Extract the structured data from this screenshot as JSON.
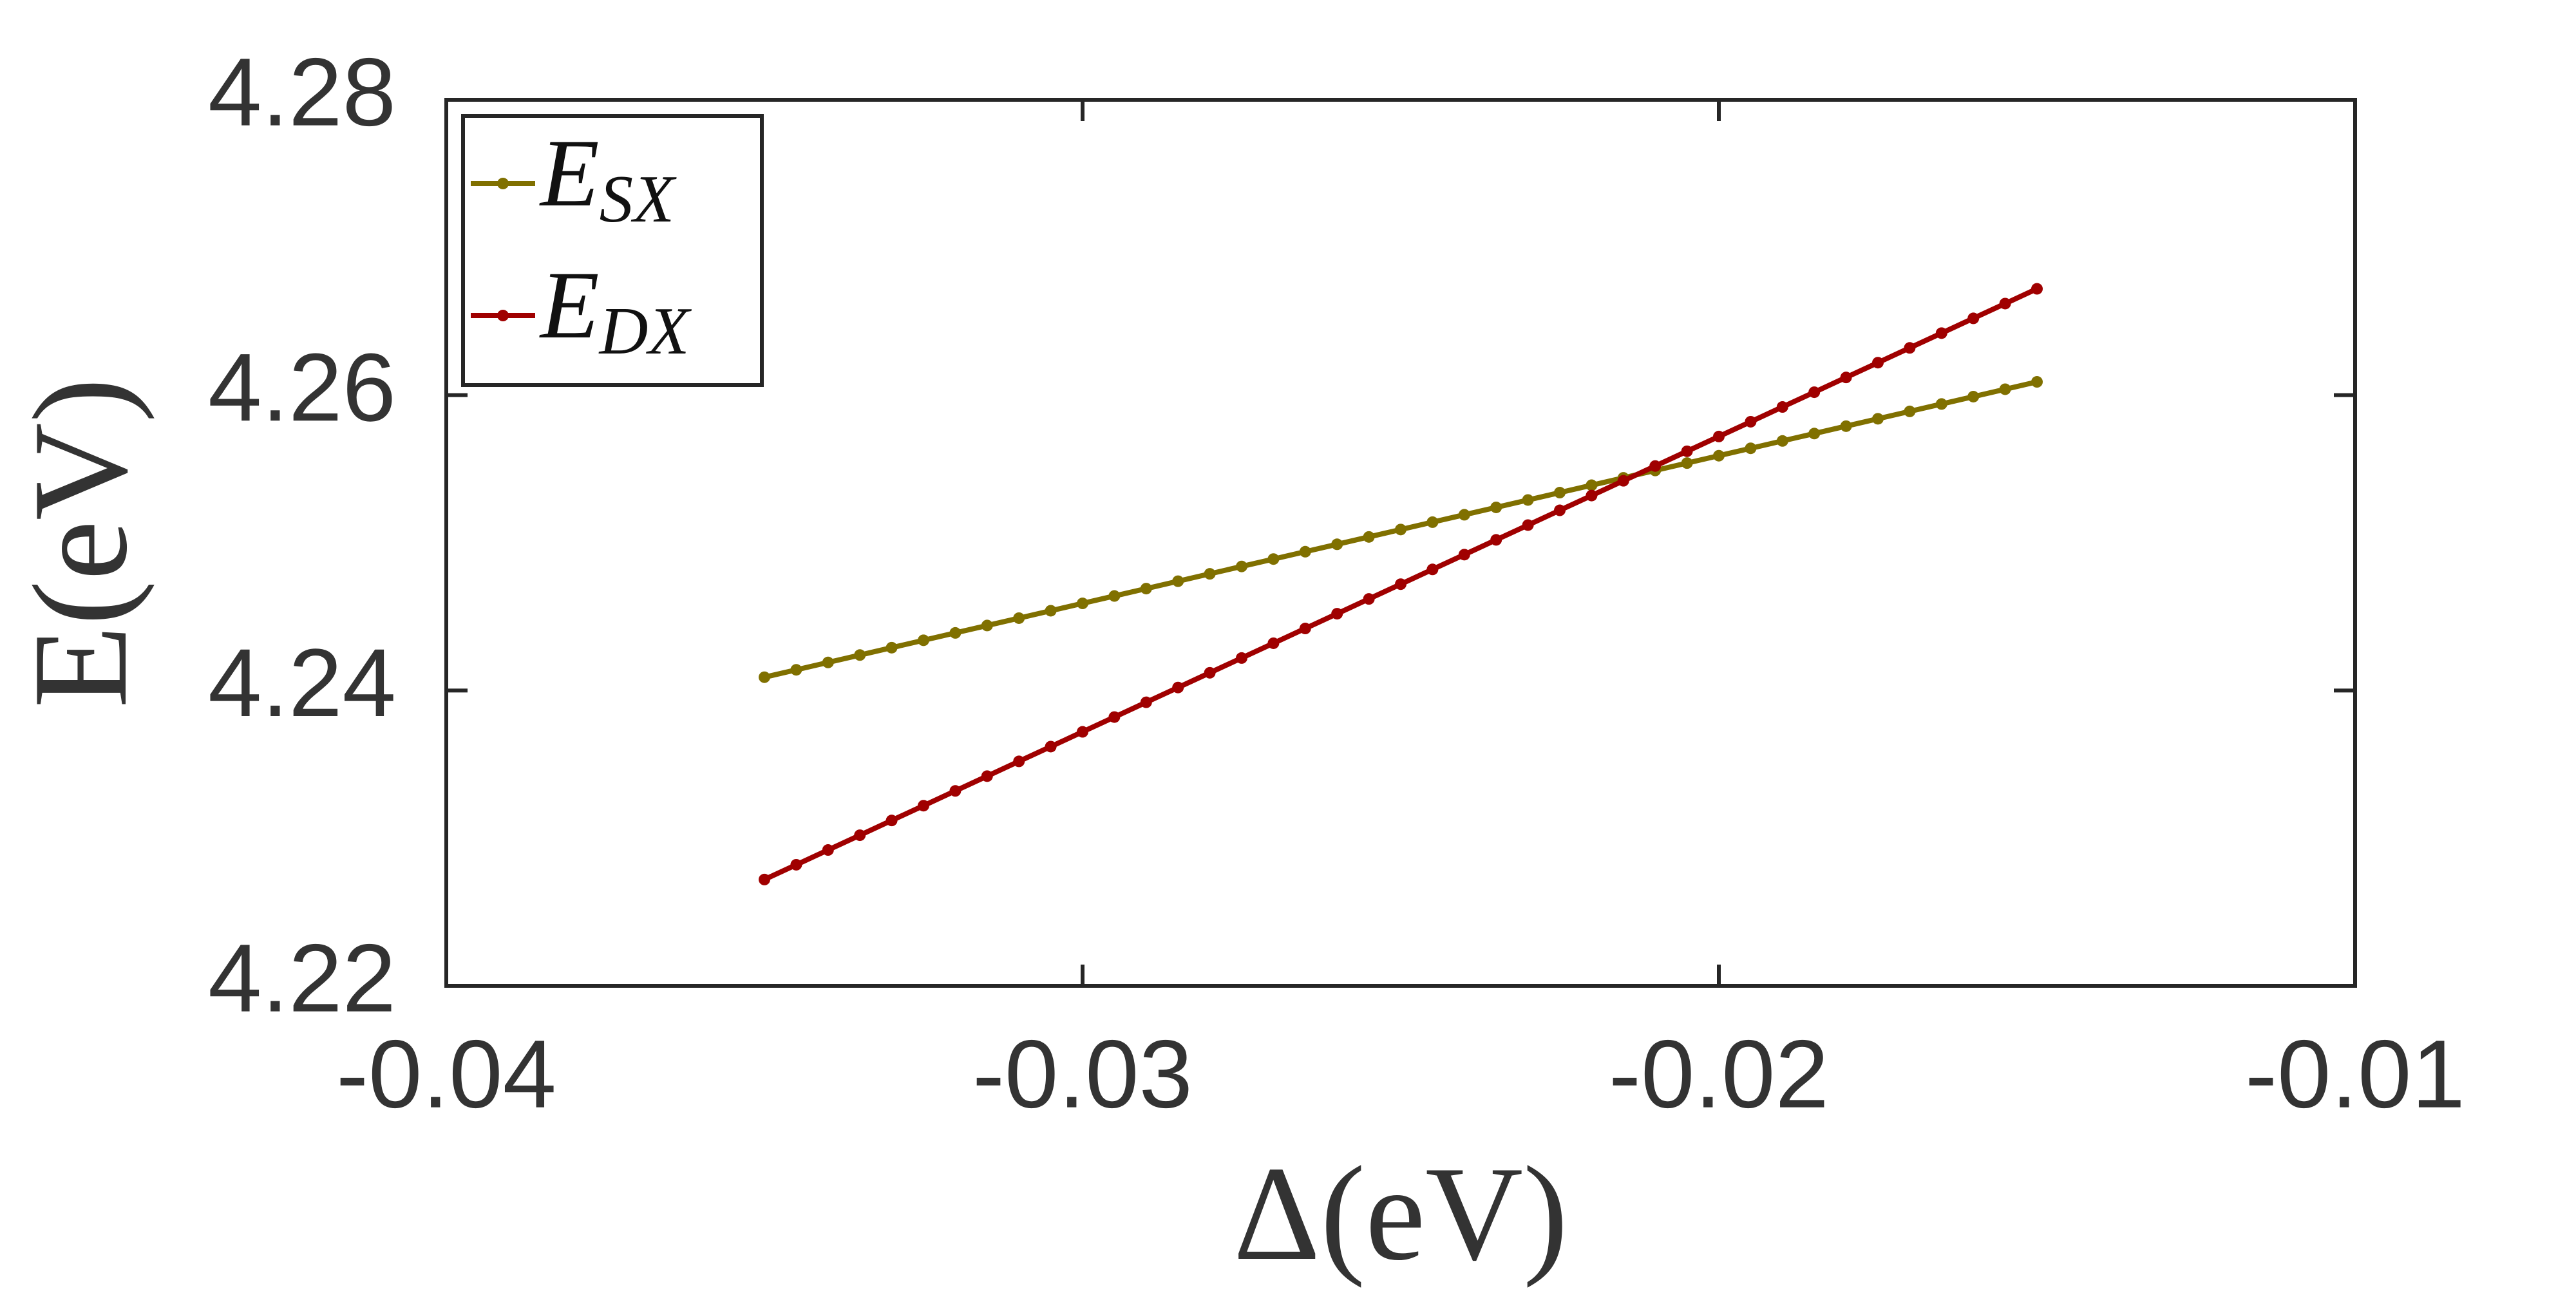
{
  "chart_data": {
    "type": "line",
    "xlabel": "Δ(eV)",
    "ylabel": "E(eV)",
    "x": [
      -0.035,
      -0.0345,
      -0.034,
      -0.0335,
      -0.033,
      -0.0325,
      -0.032,
      -0.0315,
      -0.031,
      -0.0305,
      -0.03,
      -0.0295,
      -0.029,
      -0.0285,
      -0.028,
      -0.0275,
      -0.027,
      -0.0265,
      -0.026,
      -0.0255,
      -0.025,
      -0.0245,
      -0.024,
      -0.0235,
      -0.023,
      -0.0225,
      -0.022,
      -0.0215,
      -0.021,
      -0.0205,
      -0.02,
      -0.0195,
      -0.019,
      -0.0185,
      -0.018,
      -0.0175,
      -0.017,
      -0.0165,
      -0.016,
      -0.0155,
      -0.015
    ],
    "series": [
      {
        "name": "ESX",
        "color": "#807000",
        "values": [
          4.2409,
          4.2414,
          4.2419,
          4.2424,
          4.2429,
          4.2434,
          4.2439,
          4.2444,
          4.2449,
          4.2454,
          4.2459,
          4.2464,
          4.2469,
          4.2474,
          4.2479,
          4.2484,
          4.2489,
          4.2494,
          4.2499,
          4.2504,
          4.2509,
          4.2514,
          4.2519,
          4.2524,
          4.2529,
          4.2534,
          4.2539,
          4.2544,
          4.2549,
          4.2554,
          4.2559,
          4.2564,
          4.2569,
          4.2574,
          4.2579,
          4.2584,
          4.2589,
          4.2594,
          4.2599,
          4.2604,
          4.2609
        ]
      },
      {
        "name": "EDX",
        "color": "#a00000",
        "values": [
          4.2272,
          4.2282,
          4.2292,
          4.2302,
          4.2312,
          4.2322,
          4.2332,
          4.2342,
          4.2352,
          4.2362,
          4.2372,
          4.2382,
          4.2392,
          4.2402,
          4.2412,
          4.2422,
          4.2432,
          4.2442,
          4.2452,
          4.2462,
          4.2472,
          4.2482,
          4.2492,
          4.2502,
          4.2512,
          4.2522,
          4.2532,
          4.2542,
          4.2552,
          4.2562,
          4.2572,
          4.2582,
          4.2592,
          4.2602,
          4.2612,
          4.2622,
          4.2632,
          4.2642,
          4.2652,
          4.2662,
          4.2672
        ]
      }
    ],
    "xlim": [
      -0.04,
      -0.01
    ],
    "xticks": [
      -0.04,
      -0.03,
      -0.02,
      -0.01
    ],
    "ylim": [
      4.22,
      4.28
    ],
    "yticks": [
      4.22,
      4.24,
      4.26,
      4.28
    ],
    "grid": false,
    "legend": "upper left"
  }
}
